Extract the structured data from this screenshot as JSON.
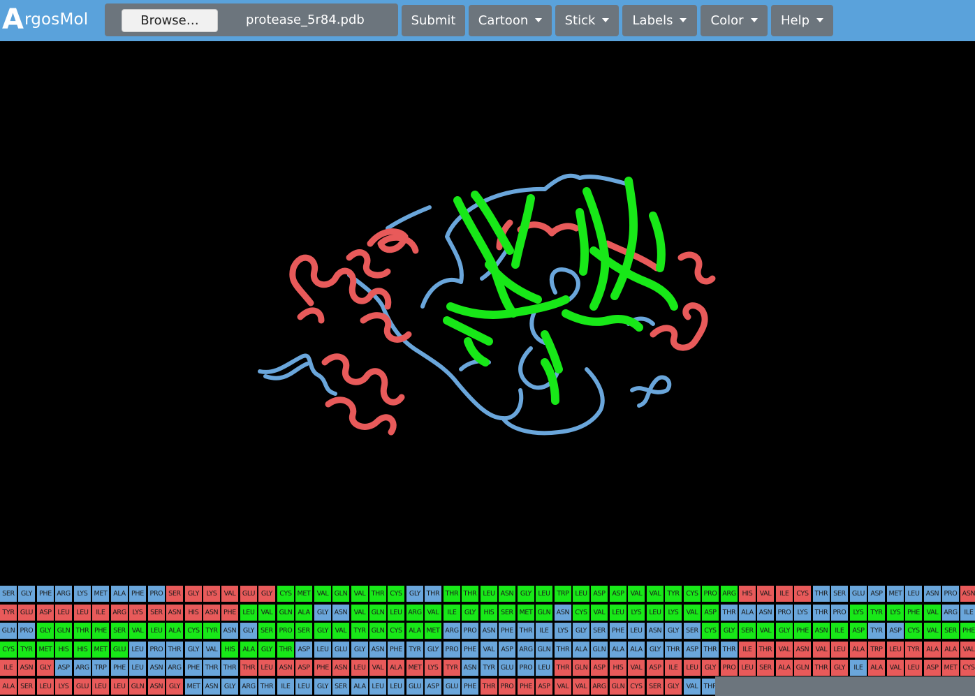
{
  "brand": {
    "initial": "A",
    "rest": "rgosMol"
  },
  "file_input": {
    "button_label": "Browse…",
    "file_name": "protease_5r84.pdb"
  },
  "nav": {
    "submit": "Submit",
    "cartoon": "Cartoon",
    "stick": "Stick",
    "labels": "Labels",
    "color": "Color",
    "help": "Help"
  },
  "colors": {
    "navbar": "#5aa2db",
    "button": "#6c757d",
    "helix": "#e85a5a",
    "sheet": "#18e818",
    "coil": "#6aa6db",
    "background": "#000000"
  },
  "sequence": {
    "rows": [
      [
        [
          "SER",
          "b"
        ],
        [
          "GLY",
          "b"
        ],
        [
          "PHE",
          "b"
        ],
        [
          "ARG",
          "b"
        ],
        [
          "LYS",
          "b"
        ],
        [
          "MET",
          "b"
        ],
        [
          "ALA",
          "b"
        ],
        [
          "PHE",
          "b"
        ],
        [
          "PRO",
          "b"
        ],
        [
          "SER",
          "r"
        ],
        [
          "GLY",
          "r"
        ],
        [
          "LYS",
          "r"
        ],
        [
          "VAL",
          "r"
        ],
        [
          "GLU",
          "r"
        ],
        [
          "GLY",
          "r"
        ],
        [
          "CYS",
          "g"
        ],
        [
          "MET",
          "g"
        ],
        [
          "VAL",
          "g"
        ],
        [
          "GLN",
          "g"
        ],
        [
          "VAL",
          "g"
        ],
        [
          "THR",
          "g"
        ],
        [
          "CYS",
          "g"
        ],
        [
          "GLY",
          "b"
        ],
        [
          "THR",
          "b"
        ],
        [
          "THR",
          "g"
        ],
        [
          "THR",
          "g"
        ],
        [
          "LEU",
          "g"
        ],
        [
          "ASN",
          "g"
        ],
        [
          "GLY",
          "g"
        ],
        [
          "LEU",
          "g"
        ],
        [
          "TRP",
          "g"
        ],
        [
          "LEU",
          "g"
        ],
        [
          "ASP",
          "g"
        ],
        [
          "ASP",
          "g"
        ],
        [
          "VAL",
          "g"
        ],
        [
          "VAL",
          "g"
        ],
        [
          "TYR",
          "g"
        ],
        [
          "CYS",
          "g"
        ],
        [
          "PRO",
          "g"
        ],
        [
          "ARG",
          "g"
        ],
        [
          "HIS",
          "r"
        ],
        [
          "VAL",
          "r"
        ],
        [
          "ILE",
          "r"
        ],
        [
          "CYS",
          "r"
        ],
        [
          "THR",
          "b"
        ],
        [
          "SER",
          "b"
        ],
        [
          "GLU",
          "b"
        ],
        [
          "ASP",
          "b"
        ],
        [
          "MET",
          "b"
        ],
        [
          "LEU",
          "b"
        ],
        [
          "ASN",
          "b"
        ],
        [
          "PRO",
          "b"
        ],
        [
          "ASN",
          "r"
        ]
      ],
      [
        [
          "TYR",
          "r"
        ],
        [
          "GLU",
          "r"
        ],
        [
          "ASP",
          "r"
        ],
        [
          "LEU",
          "r"
        ],
        [
          "LEU",
          "r"
        ],
        [
          "ILE",
          "r"
        ],
        [
          "ARG",
          "r"
        ],
        [
          "LYS",
          "r"
        ],
        [
          "SER",
          "r"
        ],
        [
          "ASN",
          "r"
        ],
        [
          "HIS",
          "r"
        ],
        [
          "ASN",
          "r"
        ],
        [
          "PHE",
          "r"
        ],
        [
          "LEU",
          "g"
        ],
        [
          "VAL",
          "g"
        ],
        [
          "GLN",
          "g"
        ],
        [
          "ALA",
          "g"
        ],
        [
          "GLY",
          "b"
        ],
        [
          "ASN",
          "b"
        ],
        [
          "VAL",
          "g"
        ],
        [
          "GLN",
          "g"
        ],
        [
          "LEU",
          "g"
        ],
        [
          "ARG",
          "g"
        ],
        [
          "VAL",
          "g"
        ],
        [
          "ILE",
          "g"
        ],
        [
          "GLY",
          "g"
        ],
        [
          "HIS",
          "g"
        ],
        [
          "SER",
          "g"
        ],
        [
          "MET",
          "g"
        ],
        [
          "GLN",
          "g"
        ],
        [
          "ASN",
          "b"
        ],
        [
          "CYS",
          "g"
        ],
        [
          "VAL",
          "g"
        ],
        [
          "LEU",
          "g"
        ],
        [
          "LYS",
          "g"
        ],
        [
          "LEU",
          "g"
        ],
        [
          "LYS",
          "g"
        ],
        [
          "VAL",
          "g"
        ],
        [
          "ASP",
          "g"
        ],
        [
          "THR",
          "b"
        ],
        [
          "ALA",
          "b"
        ],
        [
          "ASN",
          "b"
        ],
        [
          "PRO",
          "b"
        ],
        [
          "LYS",
          "b"
        ],
        [
          "THR",
          "b"
        ],
        [
          "PRO",
          "b"
        ],
        [
          "LYS",
          "g"
        ],
        [
          "TYR",
          "g"
        ],
        [
          "LYS",
          "g"
        ],
        [
          "PHE",
          "g"
        ],
        [
          "VAL",
          "g"
        ],
        [
          "ARG",
          "b"
        ],
        [
          "ILE",
          "b"
        ]
      ],
      [
        [
          "GLN",
          "b"
        ],
        [
          "PRO",
          "b"
        ],
        [
          "GLY",
          "g"
        ],
        [
          "GLN",
          "g"
        ],
        [
          "THR",
          "g"
        ],
        [
          "PHE",
          "g"
        ],
        [
          "SER",
          "g"
        ],
        [
          "VAL",
          "g"
        ],
        [
          "LEU",
          "g"
        ],
        [
          "ALA",
          "g"
        ],
        [
          "CYS",
          "g"
        ],
        [
          "TYR",
          "g"
        ],
        [
          "ASN",
          "b"
        ],
        [
          "GLY",
          "b"
        ],
        [
          "SER",
          "g"
        ],
        [
          "PRO",
          "g"
        ],
        [
          "SER",
          "g"
        ],
        [
          "GLY",
          "g"
        ],
        [
          "VAL",
          "g"
        ],
        [
          "TYR",
          "g"
        ],
        [
          "GLN",
          "g"
        ],
        [
          "CYS",
          "g"
        ],
        [
          "ALA",
          "g"
        ],
        [
          "MET",
          "g"
        ],
        [
          "ARG",
          "b"
        ],
        [
          "PRO",
          "b"
        ],
        [
          "ASN",
          "b"
        ],
        [
          "PHE",
          "b"
        ],
        [
          "THR",
          "b"
        ],
        [
          "ILE",
          "b"
        ],
        [
          "LYS",
          "b"
        ],
        [
          "GLY",
          "b"
        ],
        [
          "SER",
          "b"
        ],
        [
          "PHE",
          "b"
        ],
        [
          "LEU",
          "b"
        ],
        [
          "ASN",
          "b"
        ],
        [
          "GLY",
          "b"
        ],
        [
          "SER",
          "b"
        ],
        [
          "CYS",
          "g"
        ],
        [
          "GLY",
          "g"
        ],
        [
          "SER",
          "g"
        ],
        [
          "VAL",
          "g"
        ],
        [
          "GLY",
          "g"
        ],
        [
          "PHE",
          "g"
        ],
        [
          "ASN",
          "g"
        ],
        [
          "ILE",
          "g"
        ],
        [
          "ASP",
          "g"
        ],
        [
          "TYR",
          "b"
        ],
        [
          "ASP",
          "b"
        ],
        [
          "CYS",
          "g"
        ],
        [
          "VAL",
          "g"
        ],
        [
          "SER",
          "g"
        ],
        [
          "PHE",
          "g"
        ]
      ],
      [
        [
          "CYS",
          "g"
        ],
        [
          "TYR",
          "g"
        ],
        [
          "MET",
          "g"
        ],
        [
          "HIS",
          "g"
        ],
        [
          "HIS",
          "g"
        ],
        [
          "MET",
          "g"
        ],
        [
          "GLU",
          "g"
        ],
        [
          "LEU",
          "b"
        ],
        [
          "PRO",
          "b"
        ],
        [
          "THR",
          "b"
        ],
        [
          "GLY",
          "b"
        ],
        [
          "VAL",
          "b"
        ],
        [
          "HIS",
          "g"
        ],
        [
          "ALA",
          "g"
        ],
        [
          "GLY",
          "g"
        ],
        [
          "THR",
          "g"
        ],
        [
          "ASP",
          "b"
        ],
        [
          "LEU",
          "b"
        ],
        [
          "GLU",
          "b"
        ],
        [
          "GLY",
          "b"
        ],
        [
          "ASN",
          "b"
        ],
        [
          "PHE",
          "b"
        ],
        [
          "TYR",
          "b"
        ],
        [
          "GLY",
          "b"
        ],
        [
          "PRO",
          "b"
        ],
        [
          "PHE",
          "b"
        ],
        [
          "VAL",
          "b"
        ],
        [
          "ASP",
          "b"
        ],
        [
          "ARG",
          "b"
        ],
        [
          "GLN",
          "b"
        ],
        [
          "THR",
          "b"
        ],
        [
          "ALA",
          "b"
        ],
        [
          "GLN",
          "b"
        ],
        [
          "ALA",
          "b"
        ],
        [
          "ALA",
          "b"
        ],
        [
          "GLY",
          "b"
        ],
        [
          "THR",
          "b"
        ],
        [
          "ASP",
          "b"
        ],
        [
          "THR",
          "b"
        ],
        [
          "THR",
          "b"
        ],
        [
          "ILE",
          "r"
        ],
        [
          "THR",
          "r"
        ],
        [
          "VAL",
          "r"
        ],
        [
          "ASN",
          "r"
        ],
        [
          "VAL",
          "r"
        ],
        [
          "LEU",
          "r"
        ],
        [
          "ALA",
          "r"
        ],
        [
          "TRP",
          "r"
        ],
        [
          "LEU",
          "r"
        ],
        [
          "TYR",
          "r"
        ],
        [
          "ALA",
          "r"
        ],
        [
          "ALA",
          "r"
        ],
        [
          "VAL",
          "r"
        ]
      ],
      [
        [
          "ILE",
          "r"
        ],
        [
          "ASN",
          "r"
        ],
        [
          "GLY",
          "r"
        ],
        [
          "ASP",
          "b"
        ],
        [
          "ARG",
          "b"
        ],
        [
          "TRP",
          "b"
        ],
        [
          "PHE",
          "b"
        ],
        [
          "LEU",
          "b"
        ],
        [
          "ASN",
          "b"
        ],
        [
          "ARG",
          "b"
        ],
        [
          "PHE",
          "b"
        ],
        [
          "THR",
          "b"
        ],
        [
          "THR",
          "b"
        ],
        [
          "THR",
          "r"
        ],
        [
          "LEU",
          "r"
        ],
        [
          "ASN",
          "r"
        ],
        [
          "ASP",
          "r"
        ],
        [
          "PHE",
          "r"
        ],
        [
          "ASN",
          "r"
        ],
        [
          "LEU",
          "r"
        ],
        [
          "VAL",
          "r"
        ],
        [
          "ALA",
          "r"
        ],
        [
          "MET",
          "r"
        ],
        [
          "LYS",
          "r"
        ],
        [
          "TYR",
          "r"
        ],
        [
          "ASN",
          "b"
        ],
        [
          "TYR",
          "b"
        ],
        [
          "GLU",
          "b"
        ],
        [
          "PRO",
          "b"
        ],
        [
          "LEU",
          "b"
        ],
        [
          "THR",
          "r"
        ],
        [
          "GLN",
          "r"
        ],
        [
          "ASP",
          "r"
        ],
        [
          "HIS",
          "r"
        ],
        [
          "VAL",
          "r"
        ],
        [
          "ASP",
          "r"
        ],
        [
          "ILE",
          "r"
        ],
        [
          "LEU",
          "r"
        ],
        [
          "GLY",
          "r"
        ],
        [
          "PRO",
          "r"
        ],
        [
          "LEU",
          "r"
        ],
        [
          "SER",
          "r"
        ],
        [
          "ALA",
          "r"
        ],
        [
          "GLN",
          "r"
        ],
        [
          "THR",
          "r"
        ],
        [
          "GLY",
          "r"
        ],
        [
          "ILE",
          "b"
        ],
        [
          "ALA",
          "r"
        ],
        [
          "VAL",
          "r"
        ],
        [
          "LEU",
          "r"
        ],
        [
          "ASP",
          "r"
        ],
        [
          "MET",
          "r"
        ],
        [
          "CYS",
          "r"
        ]
      ],
      [
        [
          "ALA",
          "r"
        ],
        [
          "SER",
          "r"
        ],
        [
          "LEU",
          "r"
        ],
        [
          "LYS",
          "r"
        ],
        [
          "GLU",
          "r"
        ],
        [
          "LEU",
          "r"
        ],
        [
          "LEU",
          "r"
        ],
        [
          "GLN",
          "r"
        ],
        [
          "ASN",
          "r"
        ],
        [
          "GLY",
          "r"
        ],
        [
          "MET",
          "b"
        ],
        [
          "ASN",
          "b"
        ],
        [
          "GLY",
          "b"
        ],
        [
          "ARG",
          "b"
        ],
        [
          "THR",
          "b"
        ],
        [
          "ILE",
          "b"
        ],
        [
          "LEU",
          "b"
        ],
        [
          "GLY",
          "b"
        ],
        [
          "SER",
          "b"
        ],
        [
          "ALA",
          "b"
        ],
        [
          "LEU",
          "b"
        ],
        [
          "LEU",
          "b"
        ],
        [
          "GLU",
          "b"
        ],
        [
          "ASP",
          "b"
        ],
        [
          "GLU",
          "b"
        ],
        [
          "PHE",
          "b"
        ],
        [
          "THR",
          "r"
        ],
        [
          "PRO",
          "r"
        ],
        [
          "PHE",
          "r"
        ],
        [
          "ASP",
          "r"
        ],
        [
          "VAL",
          "r"
        ],
        [
          "VAL",
          "r"
        ],
        [
          "ARG",
          "r"
        ],
        [
          "GLN",
          "r"
        ],
        [
          "CYS",
          "r"
        ],
        [
          "SER",
          "r"
        ],
        [
          "GLY",
          "r"
        ],
        [
          "VAL",
          "b"
        ],
        [
          "THR",
          "b"
        ]
      ]
    ]
  }
}
